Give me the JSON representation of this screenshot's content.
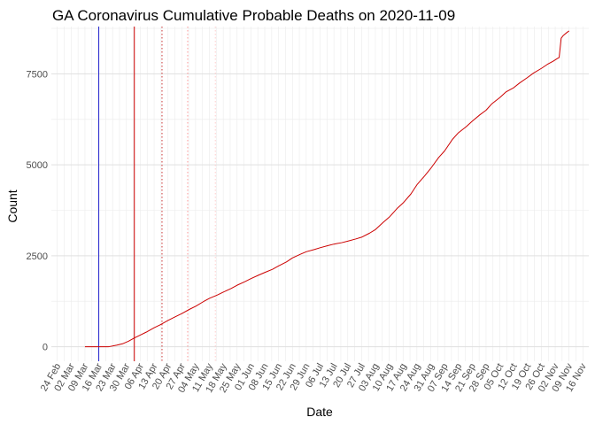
{
  "chart_data": {
    "type": "line",
    "title": "GA Coronavirus Cumulative Probable Deaths on 2020-11-09",
    "xlabel": "Date",
    "ylabel": "Count",
    "x_range": [
      "2020-02-21",
      "2020-11-19"
    ],
    "ylim": [
      -400,
      8800
    ],
    "y_ticks": [
      0,
      2500,
      5000,
      7500
    ],
    "x_tick_labels": [
      "24 Feb",
      "02 Mar",
      "09 Mar",
      "16 Mar",
      "23 Mar",
      "30 Mar",
      "06 Apr",
      "13 Apr",
      "20 Apr",
      "27 Apr",
      "04 May",
      "11 May",
      "18 May",
      "25 May",
      "01 Jun",
      "08 Jun",
      "15 Jun",
      "22 Jun",
      "29 Jun",
      "06 Jul",
      "13 Jul",
      "20 Jul",
      "27 Jul",
      "03 Aug",
      "10 Aug",
      "17 Aug",
      "24 Aug",
      "31 Aug",
      "07 Sep",
      "14 Sep",
      "21 Sep",
      "28 Sep",
      "05 Oct",
      "12 Oct",
      "19 Oct",
      "26 Oct",
      "02 Nov",
      "09 Nov",
      "16 Nov"
    ],
    "x_tick_dates": [
      "2020-02-24",
      "2020-03-02",
      "2020-03-09",
      "2020-03-16",
      "2020-03-23",
      "2020-03-30",
      "2020-04-06",
      "2020-04-13",
      "2020-04-20",
      "2020-04-27",
      "2020-05-04",
      "2020-05-11",
      "2020-05-18",
      "2020-05-25",
      "2020-06-01",
      "2020-06-08",
      "2020-06-15",
      "2020-06-22",
      "2020-06-29",
      "2020-07-06",
      "2020-07-13",
      "2020-07-20",
      "2020-07-27",
      "2020-08-03",
      "2020-08-10",
      "2020-08-17",
      "2020-08-24",
      "2020-08-31",
      "2020-09-07",
      "2020-09-14",
      "2020-09-21",
      "2020-09-28",
      "2020-10-05",
      "2020-10-12",
      "2020-10-19",
      "2020-10-26",
      "2020-11-02",
      "2020-11-09",
      "2020-11-16"
    ],
    "series": [
      {
        "color": "#cc0000",
        "points": [
          [
            "2020-03-09",
            0
          ],
          [
            "2020-03-16",
            0
          ],
          [
            "2020-03-21",
            0
          ],
          [
            "2020-03-25",
            40
          ],
          [
            "2020-03-28",
            80
          ],
          [
            "2020-03-31",
            150
          ],
          [
            "2020-04-03",
            240
          ],
          [
            "2020-04-06",
            320
          ],
          [
            "2020-04-09",
            400
          ],
          [
            "2020-04-13",
            520
          ],
          [
            "2020-04-16",
            600
          ],
          [
            "2020-04-20",
            720
          ],
          [
            "2020-04-24",
            830
          ],
          [
            "2020-04-27",
            910
          ],
          [
            "2020-05-01",
            1030
          ],
          [
            "2020-05-04",
            1110
          ],
          [
            "2020-05-08",
            1240
          ],
          [
            "2020-05-11",
            1330
          ],
          [
            "2020-05-15",
            1420
          ],
          [
            "2020-05-18",
            1500
          ],
          [
            "2020-05-22",
            1600
          ],
          [
            "2020-05-25",
            1690
          ],
          [
            "2020-05-29",
            1790
          ],
          [
            "2020-06-01",
            1870
          ],
          [
            "2020-06-05",
            1970
          ],
          [
            "2020-06-08",
            2040
          ],
          [
            "2020-06-12",
            2130
          ],
          [
            "2020-06-15",
            2220
          ],
          [
            "2020-06-19",
            2330
          ],
          [
            "2020-06-22",
            2440
          ],
          [
            "2020-06-26",
            2540
          ],
          [
            "2020-06-29",
            2610
          ],
          [
            "2020-07-03",
            2670
          ],
          [
            "2020-07-06",
            2720
          ],
          [
            "2020-07-10",
            2780
          ],
          [
            "2020-07-13",
            2820
          ],
          [
            "2020-07-17",
            2860
          ],
          [
            "2020-07-20",
            2900
          ],
          [
            "2020-07-24",
            2960
          ],
          [
            "2020-07-27",
            3010
          ],
          [
            "2020-07-31",
            3120
          ],
          [
            "2020-08-03",
            3220
          ],
          [
            "2020-08-07",
            3420
          ],
          [
            "2020-08-10",
            3560
          ],
          [
            "2020-08-14",
            3800
          ],
          [
            "2020-08-17",
            3950
          ],
          [
            "2020-08-21",
            4200
          ],
          [
            "2020-08-24",
            4450
          ],
          [
            "2020-08-28",
            4700
          ],
          [
            "2020-08-31",
            4900
          ],
          [
            "2020-09-04",
            5200
          ],
          [
            "2020-09-07",
            5380
          ],
          [
            "2020-09-11",
            5700
          ],
          [
            "2020-09-14",
            5880
          ],
          [
            "2020-09-18",
            6050
          ],
          [
            "2020-09-21",
            6200
          ],
          [
            "2020-09-25",
            6380
          ],
          [
            "2020-09-28",
            6500
          ],
          [
            "2020-10-01",
            6680
          ],
          [
            "2020-10-05",
            6850
          ],
          [
            "2020-10-08",
            7000
          ],
          [
            "2020-10-12",
            7120
          ],
          [
            "2020-10-15",
            7250
          ],
          [
            "2020-10-19",
            7400
          ],
          [
            "2020-10-22",
            7520
          ],
          [
            "2020-10-26",
            7650
          ],
          [
            "2020-10-29",
            7760
          ],
          [
            "2020-11-01",
            7850
          ],
          [
            "2020-11-03",
            7920
          ],
          [
            "2020-11-04",
            7950
          ],
          [
            "2020-11-05",
            8480
          ],
          [
            "2020-11-06",
            8550
          ],
          [
            "2020-11-08",
            8640
          ],
          [
            "2020-11-09",
            8680
          ]
        ]
      }
    ],
    "reference_lines": [
      {
        "date": "2020-03-16",
        "color": "#2222cc",
        "style": "solid"
      },
      {
        "date": "2020-04-03",
        "color": "#cc0000",
        "style": "solid"
      },
      {
        "date": "2020-04-17",
        "color": "#cc3333",
        "style": "dotted"
      },
      {
        "date": "2020-04-30",
        "color": "#ff9999",
        "style": "dotted"
      },
      {
        "date": "2020-05-14",
        "color": "#ffcccc",
        "style": "dotted"
      }
    ],
    "grid": true,
    "legend": "none"
  }
}
